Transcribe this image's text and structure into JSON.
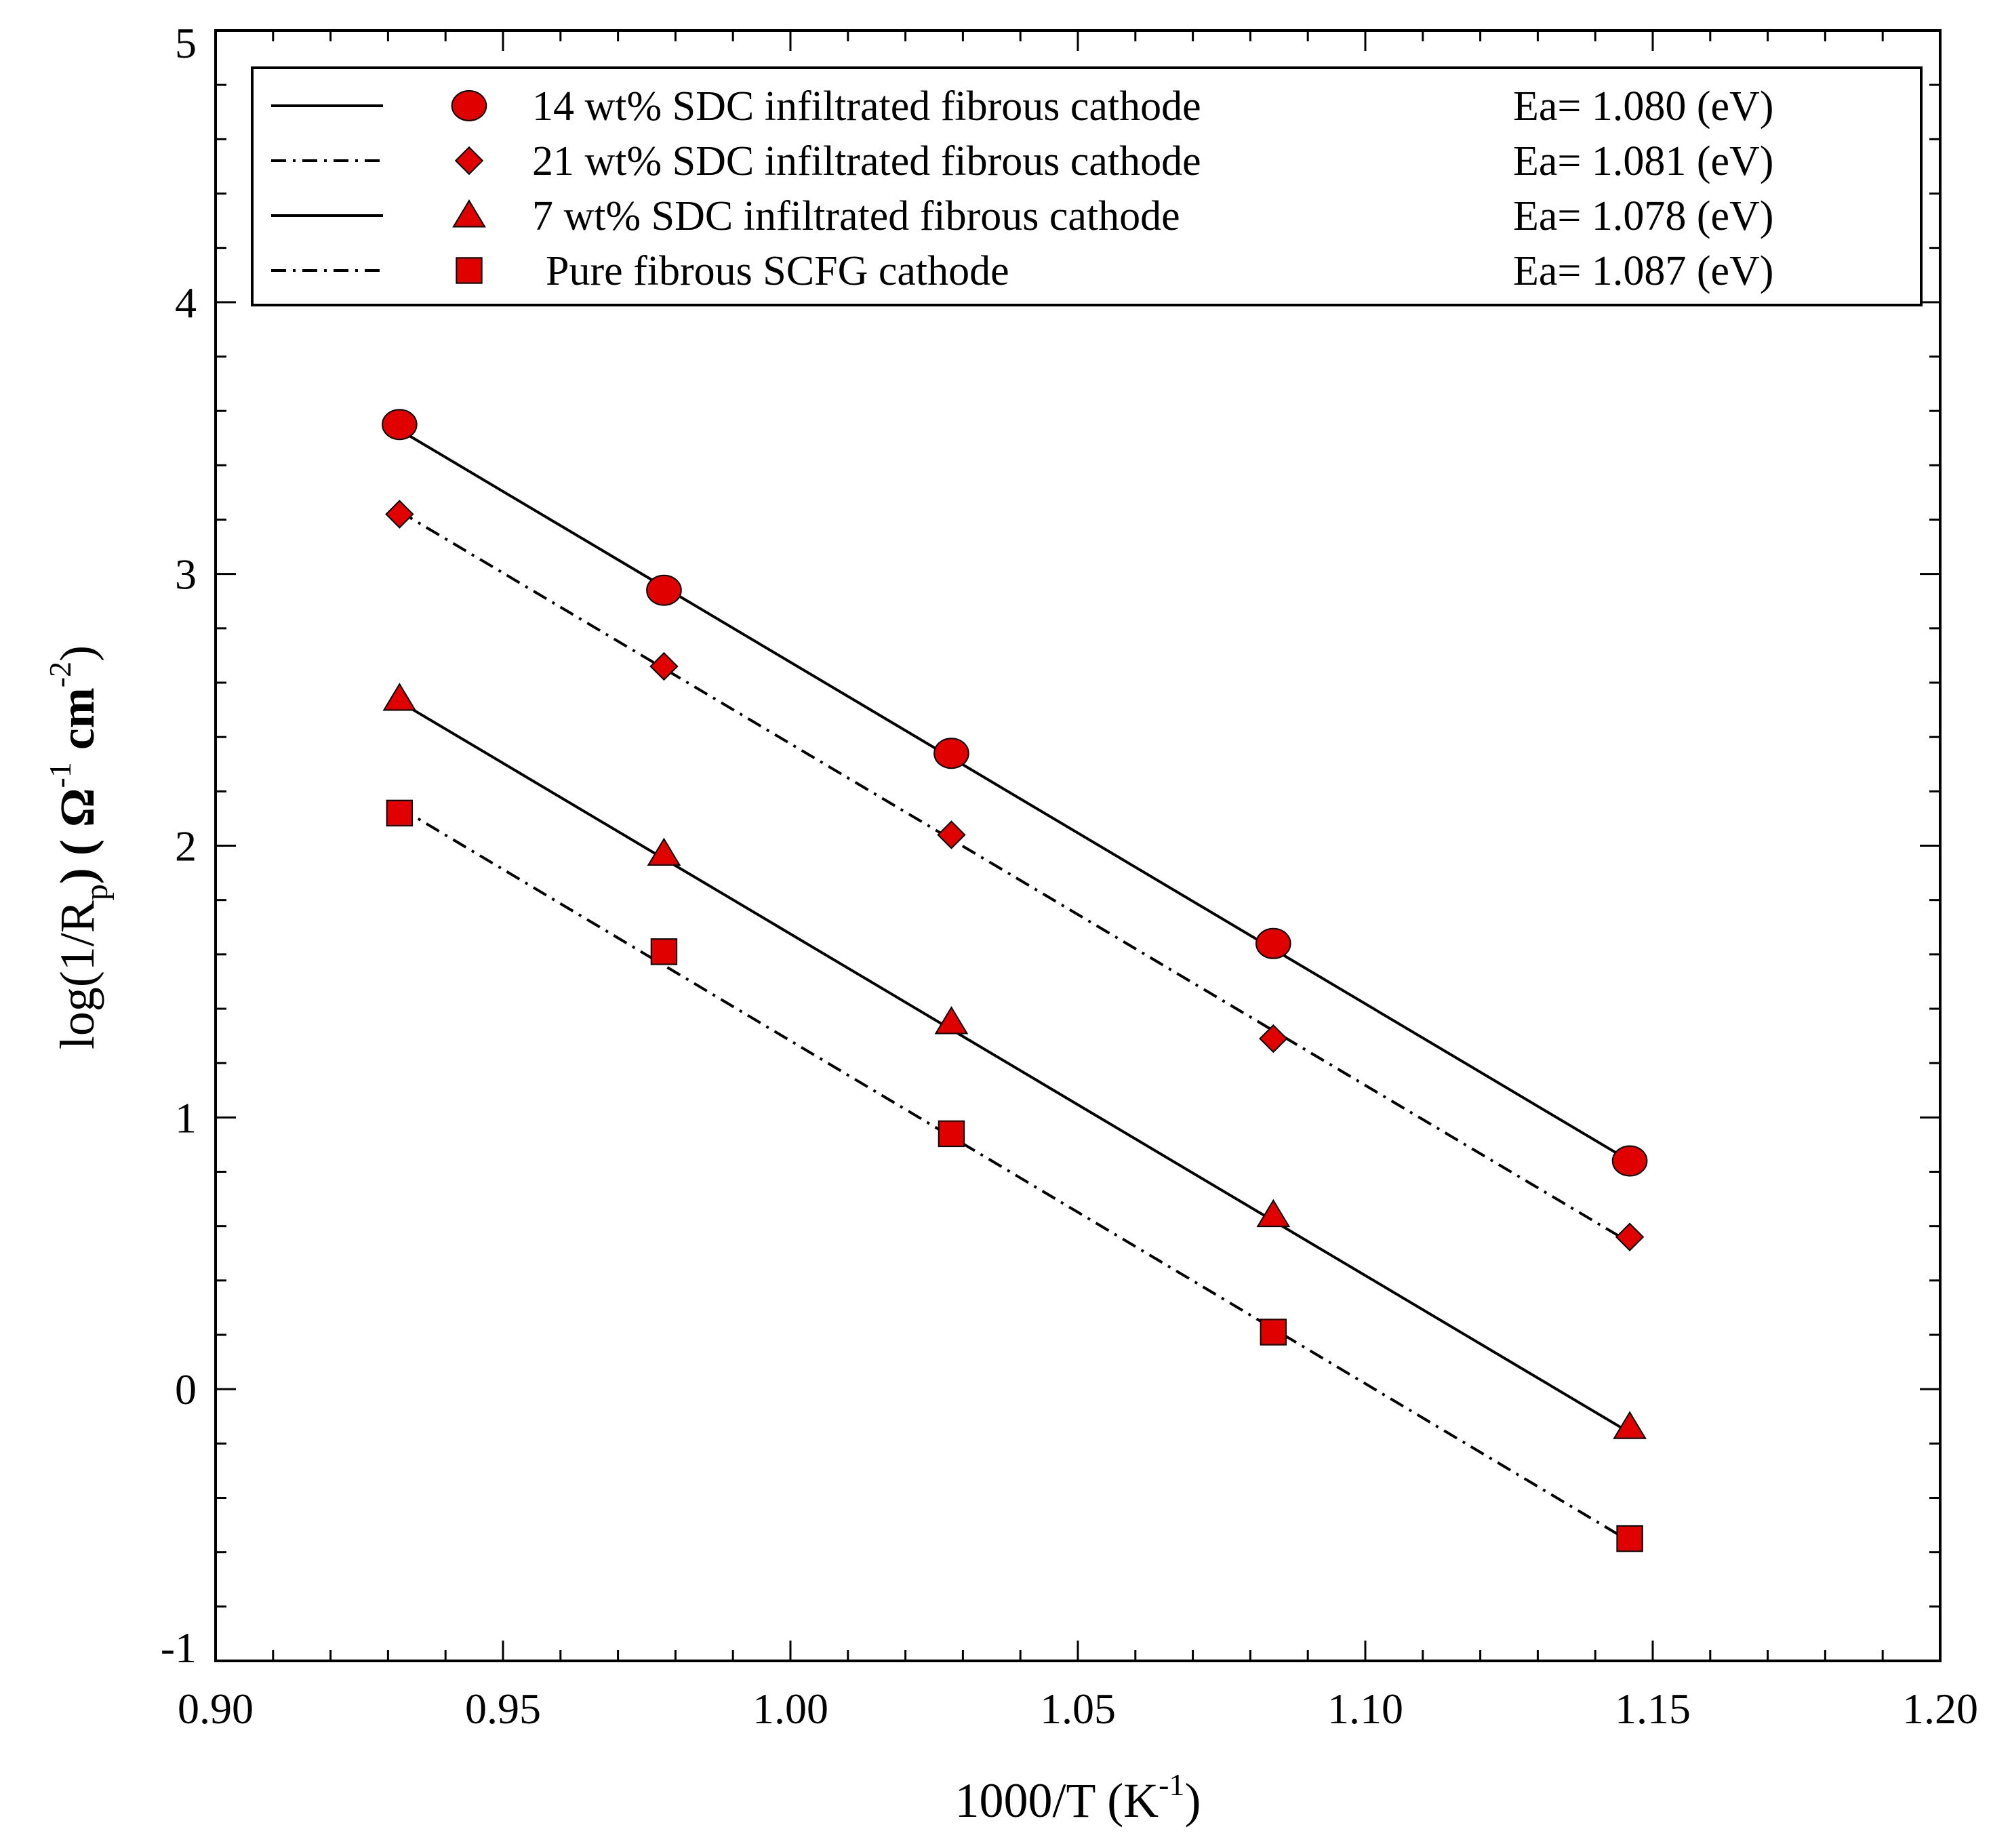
{
  "chart_data": {
    "type": "scatter",
    "title": "",
    "xlabel": "1000/T (K",
    "xlabel_sup": "-1",
    "xlabel_end": ")",
    "ylabel_parts": [
      "log(1/R",
      "p",
      ") ( Ω",
      "-1",
      " cm",
      "-2",
      ")"
    ],
    "xlim": [
      0.9,
      1.2
    ],
    "ylim": [
      -1,
      5
    ],
    "x_ticks": [
      0.9,
      0.95,
      1.0,
      1.05,
      1.1,
      1.15,
      1.2
    ],
    "x_tick_labels": [
      "0.90",
      "0.95",
      "1.00",
      "1.05",
      "1.10",
      "1.15",
      "1.20"
    ],
    "y_ticks": [
      -1,
      0,
      1,
      2,
      3,
      4,
      5
    ],
    "y_tick_labels": [
      "-1",
      "0",
      "1",
      "2",
      "3",
      "4",
      "5"
    ],
    "legend_position": "top",
    "series": [
      {
        "name": "14 wt% SDC infiltrated fibrous cathode",
        "ea": "Ea= 1.080 (eV)",
        "marker": "circle",
        "line_style": "solid",
        "color": "#e00000",
        "x": [
          0.932,
          0.978,
          1.028,
          1.084,
          1.146
        ],
        "y": [
          3.55,
          2.94,
          2.34,
          1.64,
          0.84
        ],
        "fit": [
          [
            0.932,
            3.53
          ],
          [
            1.146,
            0.84
          ]
        ]
      },
      {
        "name": "21 wt% SDC infiltrated fibrous cathode",
        "ea": "Ea= 1.081 (eV)",
        "marker": "diamond",
        "line_style": "dashdot",
        "color": "#e00000",
        "x": [
          0.932,
          0.978,
          1.028,
          1.084,
          1.146
        ],
        "y": [
          3.22,
          2.66,
          2.04,
          1.29,
          0.56
        ],
        "fit": [
          [
            0.932,
            3.23
          ],
          [
            1.146,
            0.54
          ]
        ]
      },
      {
        "name": "7 wt% SDC infiltrated fibrous cathode",
        "ea": "Ea= 1.078 (eV)",
        "marker": "triangle",
        "line_style": "solid",
        "color": "#e00000",
        "x": [
          0.932,
          0.978,
          1.028,
          1.084,
          1.146
        ],
        "y": [
          2.54,
          1.97,
          1.35,
          0.64,
          -0.14
        ],
        "fit": [
          [
            0.932,
            2.53
          ],
          [
            1.146,
            -0.16
          ]
        ]
      },
      {
        "name": "Pure fibrous SCFG cathode",
        "ea": "Ea= 1.087 (eV)",
        "marker": "square",
        "line_style": "dashdot",
        "color": "#e00000",
        "x": [
          0.932,
          0.978,
          1.028,
          1.084,
          1.146
        ],
        "y": [
          2.12,
          1.61,
          0.94,
          0.21,
          -0.55
        ],
        "fit": [
          [
            0.932,
            2.14
          ],
          [
            1.146,
            -0.56
          ]
        ]
      }
    ]
  }
}
